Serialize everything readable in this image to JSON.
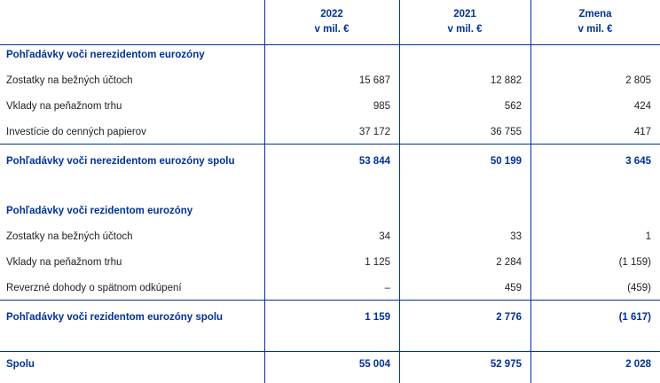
{
  "table": {
    "columns": [
      {
        "year": "2022",
        "unit": "v mil. €"
      },
      {
        "year": "2021",
        "unit": "v mil. €"
      },
      {
        "year": "Zmena",
        "unit": "v mil. €"
      }
    ],
    "sections": [
      {
        "title": "Pohľadávky voči nerezidentom eurozóny",
        "rows": [
          {
            "label": "Zostatky na bežných účtoch",
            "values": [
              "15 687",
              "12 882",
              "2 805"
            ]
          },
          {
            "label": "Vklady na peňažnom trhu",
            "values": [
              "985",
              "562",
              "424"
            ]
          },
          {
            "label": "Investície do cenných papierov",
            "values": [
              "37 172",
              "36 755",
              "417"
            ]
          }
        ],
        "total": {
          "label": "Pohľadávky voči nerezidentom eurozóny spolu",
          "values": [
            "53 844",
            "50 199",
            "3 645"
          ]
        }
      },
      {
        "title": "Pohľadávky voči rezidentom eurozóny",
        "rows": [
          {
            "label": "Zostatky na bežných účtoch",
            "values": [
              "34",
              "33",
              "1"
            ]
          },
          {
            "label": "Vklady na peňažnom trhu",
            "values": [
              "1 125",
              "2 284",
              "(1 159)"
            ]
          },
          {
            "label": "Reverzné dohody o spätnom odkúpení",
            "values": [
              "–",
              "459",
              "(459)"
            ]
          }
        ],
        "total": {
          "label": "Pohľadávky voči rezidentom eurozóny spolu",
          "values": [
            "1 159",
            "2 776",
            "(1 617)"
          ]
        }
      }
    ],
    "grand_total": {
      "label": "Spolu",
      "values": [
        "55 004",
        "52 975",
        "2 028"
      ]
    }
  }
}
